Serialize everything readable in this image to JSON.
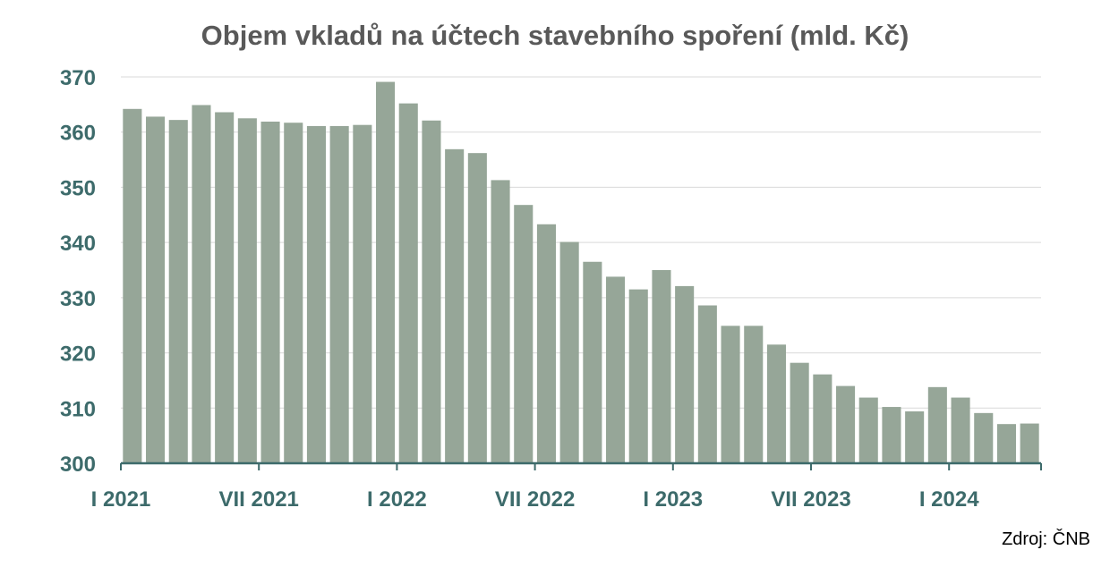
{
  "title": "Objem vkladů na účtech stavebního spoření (mld. Kč)",
  "source": "Zdroj: ČNB",
  "colors": {
    "bar": "#96A698",
    "axis": "#3D6B6B",
    "grid": "#D9D9D9",
    "title": "#595959"
  },
  "chart_data": {
    "type": "bar",
    "title": "Objem vkladů na účtech stavebního spoření (mld. Kč)",
    "xlabel": "",
    "ylabel": "",
    "ylim": [
      300,
      370
    ],
    "yticks": [
      300,
      310,
      320,
      330,
      340,
      350,
      360,
      370
    ],
    "grid": true,
    "x_tick_labels": [
      {
        "index": 0,
        "label": "I 2021"
      },
      {
        "index": 6,
        "label": "VII 2021"
      },
      {
        "index": 12,
        "label": "I 2022"
      },
      {
        "index": 18,
        "label": "VII 2022"
      },
      {
        "index": 24,
        "label": "I 2023"
      },
      {
        "index": 30,
        "label": "VII 2023"
      },
      {
        "index": 36,
        "label": "I 2024"
      }
    ],
    "categories": [
      "2021-01",
      "2021-02",
      "2021-03",
      "2021-04",
      "2021-05",
      "2021-06",
      "2021-07",
      "2021-08",
      "2021-09",
      "2021-10",
      "2021-11",
      "2021-12",
      "2022-01",
      "2022-02",
      "2022-03",
      "2022-04",
      "2022-05",
      "2022-06",
      "2022-07",
      "2022-08",
      "2022-09",
      "2022-10",
      "2022-11",
      "2022-12",
      "2023-01",
      "2023-02",
      "2023-03",
      "2023-04",
      "2023-05",
      "2023-06",
      "2023-07",
      "2023-08",
      "2023-09",
      "2023-10",
      "2023-11",
      "2023-12",
      "2024-01",
      "2024-02",
      "2024-03",
      "2024-04"
    ],
    "values": [
      364.2,
      362.8,
      362.2,
      364.9,
      363.6,
      362.5,
      361.9,
      361.7,
      361.1,
      361.1,
      361.3,
      369.1,
      365.2,
      362.1,
      356.9,
      356.2,
      351.3,
      346.8,
      343.3,
      340.1,
      336.5,
      333.8,
      331.5,
      335.0,
      332.1,
      328.6,
      324.9,
      324.9,
      321.5,
      318.2,
      316.1,
      314.0,
      311.9,
      310.2,
      309.4,
      313.8,
      311.9,
      309.1,
      307.1,
      307.2
    ]
  }
}
